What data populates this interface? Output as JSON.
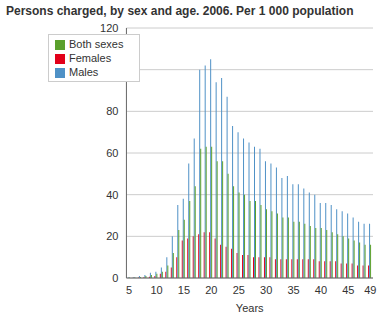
{
  "chart_data": {
    "type": "bar",
    "title": "Persons charged, by sex and age. 2006. Per 1 000 population",
    "x_label": "Years",
    "categories": [
      5,
      null,
      null,
      null,
      null,
      10,
      null,
      null,
      null,
      null,
      15,
      null,
      null,
      null,
      null,
      20,
      null,
      null,
      null,
      null,
      25,
      null,
      null,
      null,
      null,
      30,
      null,
      null,
      null,
      null,
      35,
      null,
      null,
      null,
      null,
      40,
      null,
      null,
      null,
      null,
      45,
      null,
      null,
      null,
      49
    ],
    "series": [
      {
        "name": "Females",
        "color": "#e2001a",
        "values": [
          0,
          0.1,
          0.2,
          0.4,
          0.6,
          1,
          2,
          3,
          5,
          10,
          18,
          19,
          20,
          21,
          22,
          22,
          19,
          16,
          15,
          14,
          12,
          11,
          11,
          10,
          10,
          10,
          10,
          9,
          9,
          9,
          9,
          9,
          9,
          9,
          9,
          8,
          8,
          8,
          8,
          7,
          7,
          7,
          6,
          6,
          6
        ]
      },
      {
        "name": "Males",
        "color": "#4f91c6",
        "values": [
          0.3,
          0.5,
          1,
          1.5,
          2.5,
          3,
          5,
          10,
          20,
          35,
          38,
          55,
          67,
          100,
          102,
          105,
          94,
          96,
          87,
          73,
          70,
          67,
          65,
          63,
          62,
          56,
          55,
          53,
          48,
          49,
          45,
          45,
          43,
          41,
          40,
          36,
          36,
          35,
          33,
          32,
          31,
          29,
          27,
          26,
          26
        ]
      },
      {
        "name": "Both sexes",
        "color": "#5aa02c",
        "values": [
          0.2,
          0.3,
          0.5,
          1,
          1.5,
          2,
          3,
          6,
          12,
          23,
          28,
          37,
          44,
          62,
          63,
          63,
          56,
          56,
          50,
          44,
          41,
          40,
          37,
          37,
          35,
          33,
          32,
          31,
          29,
          29,
          27,
          27,
          26,
          25,
          24,
          24,
          23,
          22,
          21,
          20,
          19,
          18,
          17,
          16,
          16
        ]
      }
    ],
    "ylim": [
      0,
      120
    ],
    "yticks": [
      0,
      20,
      40,
      60,
      80,
      100,
      120
    ],
    "grid": true,
    "legend": "upper left"
  }
}
